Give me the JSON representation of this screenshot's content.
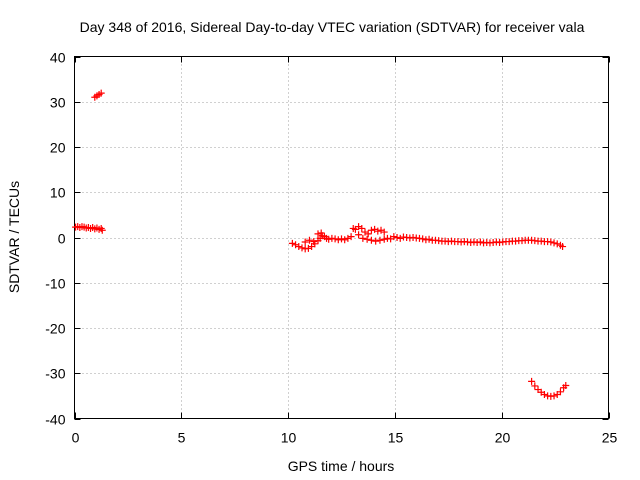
{
  "chart_data": {
    "type": "scatter",
    "title": "Day 348 of 2016, Sidereal Day-to-day VTEC variation (SDTVAR) for receiver vala",
    "xlabel": "GPS time / hours",
    "ylabel": "SDTVAR / TECUs",
    "xlim": [
      0,
      25
    ],
    "ylim": [
      -40,
      40
    ],
    "xticks": [
      0,
      5,
      10,
      15,
      20,
      25
    ],
    "yticks": [
      -40,
      -30,
      -20,
      -10,
      0,
      10,
      20,
      30,
      40
    ],
    "grid": true,
    "marker_color": "#ff0000",
    "series": [
      {
        "name": "SDTVAR",
        "points": [
          [
            0.05,
            2.3
          ],
          [
            0.15,
            2.4
          ],
          [
            0.25,
            2.2
          ],
          [
            0.35,
            2.4
          ],
          [
            0.45,
            2.3
          ],
          [
            0.55,
            2.1
          ],
          [
            0.65,
            2.2
          ],
          [
            0.75,
            2.0
          ],
          [
            0.85,
            2.2
          ],
          [
            0.95,
            1.9
          ],
          [
            1.05,
            2.1
          ],
          [
            1.15,
            1.8
          ],
          [
            1.25,
            2.0
          ],
          [
            1.3,
            1.6
          ],
          [
            0.95,
            31.0
          ],
          [
            1.05,
            31.3
          ],
          [
            1.15,
            31.6
          ],
          [
            1.25,
            31.9
          ],
          [
            10.2,
            -1.3
          ],
          [
            10.35,
            -1.6
          ],
          [
            10.5,
            -2.0
          ],
          [
            10.65,
            -2.3
          ],
          [
            10.8,
            -2.5
          ],
          [
            10.95,
            -2.4
          ],
          [
            11.1,
            -2.0
          ],
          [
            11.25,
            -1.4
          ],
          [
            11.4,
            -0.7
          ],
          [
            11.5,
            -0.2
          ],
          [
            11.6,
            0.4
          ],
          [
            11.7,
            0.2
          ],
          [
            11.8,
            -0.2
          ],
          [
            10.8,
            -1.0
          ],
          [
            11.0,
            -0.6
          ],
          [
            11.2,
            -0.9
          ],
          [
            11.4,
            0.8
          ],
          [
            11.55,
            1.0
          ],
          [
            11.9,
            -0.4
          ],
          [
            12.05,
            -0.2
          ],
          [
            12.2,
            -0.3
          ],
          [
            12.35,
            -0.5
          ],
          [
            12.5,
            -0.3
          ],
          [
            12.65,
            -0.5
          ],
          [
            12.8,
            -0.2
          ],
          [
            12.95,
            0.2
          ],
          [
            13.05,
            2.0
          ],
          [
            13.15,
            1.8
          ],
          [
            13.3,
            2.4
          ],
          [
            13.45,
            2.0
          ],
          [
            13.6,
            1.2
          ],
          [
            13.75,
            0.8
          ],
          [
            13.9,
            1.6
          ],
          [
            14.05,
            1.8
          ],
          [
            14.2,
            1.4
          ],
          [
            14.35,
            1.6
          ],
          [
            14.5,
            1.2
          ],
          [
            13.3,
            0.6
          ],
          [
            13.5,
            -0.2
          ],
          [
            13.7,
            -0.4
          ],
          [
            13.9,
            -0.6
          ],
          [
            14.1,
            -0.8
          ],
          [
            14.3,
            -0.6
          ],
          [
            14.5,
            -0.4
          ],
          [
            14.65,
            -0.2
          ],
          [
            14.8,
            -0.3
          ],
          [
            14.95,
            0.2
          ],
          [
            15.1,
            0.0
          ],
          [
            15.25,
            -0.2
          ],
          [
            15.4,
            0.1
          ],
          [
            15.55,
            0.0
          ],
          [
            15.7,
            -0.1
          ],
          [
            15.85,
            0.0
          ],
          [
            16.0,
            -0.1
          ],
          [
            16.15,
            -0.2
          ],
          [
            16.3,
            -0.3
          ],
          [
            16.45,
            -0.5
          ],
          [
            16.6,
            -0.4
          ],
          [
            16.75,
            -0.6
          ],
          [
            16.9,
            -0.6
          ],
          [
            17.05,
            -0.7
          ],
          [
            17.2,
            -0.8
          ],
          [
            17.35,
            -0.8
          ],
          [
            17.5,
            -0.9
          ],
          [
            17.65,
            -0.8
          ],
          [
            17.8,
            -0.9
          ],
          [
            17.95,
            -0.9
          ],
          [
            18.1,
            -1.0
          ],
          [
            18.25,
            -0.9
          ],
          [
            18.4,
            -1.0
          ],
          [
            18.55,
            -1.1
          ],
          [
            18.7,
            -1.0
          ],
          [
            18.85,
            -1.1
          ],
          [
            19.0,
            -1.0
          ],
          [
            19.15,
            -1.2
          ],
          [
            19.3,
            -1.1
          ],
          [
            19.45,
            -1.2
          ],
          [
            19.6,
            -1.1
          ],
          [
            19.75,
            -1.0
          ],
          [
            19.9,
            -1.1
          ],
          [
            20.05,
            -1.0
          ],
          [
            20.2,
            -0.9
          ],
          [
            20.35,
            -0.9
          ],
          [
            20.5,
            -0.8
          ],
          [
            20.65,
            -0.8
          ],
          [
            20.8,
            -0.7
          ],
          [
            20.95,
            -0.7
          ],
          [
            21.1,
            -0.6
          ],
          [
            21.25,
            -0.6
          ],
          [
            21.4,
            -0.6
          ],
          [
            21.55,
            -0.7
          ],
          [
            21.7,
            -0.8
          ],
          [
            21.85,
            -0.8
          ],
          [
            22.0,
            -0.9
          ],
          [
            22.15,
            -0.9
          ],
          [
            22.3,
            -1.0
          ],
          [
            22.45,
            -1.2
          ],
          [
            22.6,
            -1.4
          ],
          [
            22.75,
            -1.7
          ],
          [
            22.85,
            -2.0
          ],
          [
            21.4,
            -31.8
          ],
          [
            21.55,
            -32.8
          ],
          [
            21.7,
            -33.6
          ],
          [
            21.85,
            -34.2
          ],
          [
            22.0,
            -34.7
          ],
          [
            22.15,
            -35.0
          ],
          [
            22.3,
            -35.1
          ],
          [
            22.45,
            -35.0
          ],
          [
            22.6,
            -34.7
          ],
          [
            22.75,
            -34.1
          ],
          [
            22.9,
            -33.2
          ],
          [
            23.0,
            -32.7
          ]
        ]
      }
    ]
  }
}
